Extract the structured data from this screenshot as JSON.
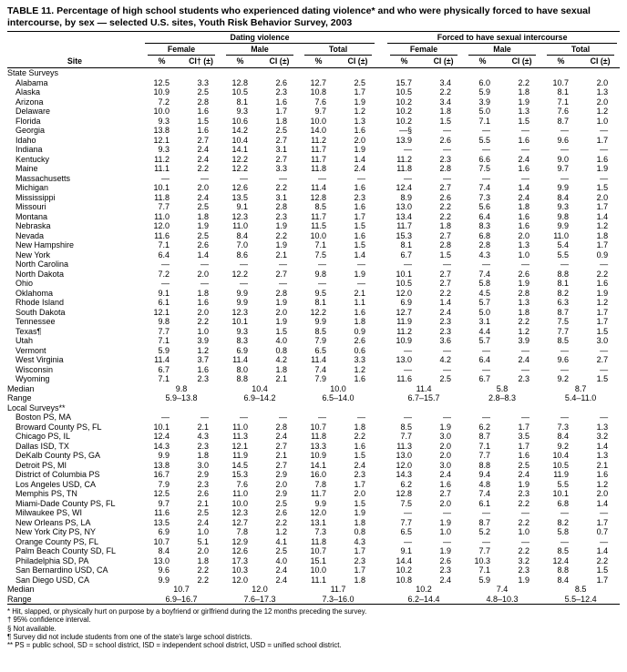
{
  "title": "TABLE 11. Percentage of high school students who experienced dating violence* and who were physically forced to have sexual intercourse, by sex — selected U.S. sites, Youth Risk Behavior Survey, 2003",
  "header": {
    "site": "Site",
    "groups": [
      "Dating violence",
      "Forced to have sexual intercourse"
    ],
    "subgroups": [
      "Female",
      "Male",
      "Total"
    ],
    "pct": "%",
    "ci_first": "CI† (±)",
    "ci": "CI (±)"
  },
  "sections": [
    {
      "label": "State Surveys",
      "rows": [
        [
          "Alabama",
          "12.5",
          "3.3",
          "12.8",
          "2.6",
          "12.7",
          "2.5",
          "15.7",
          "3.4",
          "6.0",
          "2.2",
          "10.7",
          "2.0"
        ],
        [
          "Alaska",
          "10.9",
          "2.5",
          "10.5",
          "2.3",
          "10.8",
          "1.7",
          "10.5",
          "2.2",
          "5.9",
          "1.8",
          "8.1",
          "1.3"
        ],
        [
          "Arizona",
          "7.2",
          "2.8",
          "8.1",
          "1.6",
          "7.6",
          "1.9",
          "10.2",
          "3.4",
          "3.9",
          "1.9",
          "7.1",
          "2.0"
        ],
        [
          "Delaware",
          "10.0",
          "1.6",
          "9.3",
          "1.7",
          "9.7",
          "1.2",
          "10.2",
          "1.8",
          "5.0",
          "1.3",
          "7.6",
          "1.2"
        ],
        [
          "Florida",
          "9.3",
          "1.5",
          "10.6",
          "1.8",
          "10.0",
          "1.3",
          "10.2",
          "1.5",
          "7.1",
          "1.5",
          "8.7",
          "1.0"
        ],
        [
          "Georgia",
          "13.8",
          "1.6",
          "14.2",
          "2.5",
          "14.0",
          "1.6",
          "—§",
          "—",
          "—",
          "—",
          "—",
          "—"
        ],
        [
          "Idaho",
          "12.1",
          "2.7",
          "10.4",
          "2.7",
          "11.2",
          "2.0",
          "13.9",
          "2.6",
          "5.5",
          "1.6",
          "9.6",
          "1.7"
        ],
        [
          "Indiana",
          "9.3",
          "2.4",
          "14.1",
          "3.1",
          "11.7",
          "1.9",
          "—",
          "—",
          "—",
          "—",
          "—",
          "—"
        ],
        [
          "Kentucky",
          "11.2",
          "2.4",
          "12.2",
          "2.7",
          "11.7",
          "1.4",
          "11.2",
          "2.3",
          "6.6",
          "2.4",
          "9.0",
          "1.6"
        ],
        [
          "Maine",
          "11.1",
          "2.2",
          "12.2",
          "3.3",
          "11.8",
          "2.4",
          "11.8",
          "2.8",
          "7.5",
          "1.6",
          "9.7",
          "1.9"
        ],
        [
          "Massachusetts",
          "—",
          "—",
          "—",
          "—",
          "—",
          "—",
          "—",
          "—",
          "—",
          "—",
          "—",
          "—"
        ],
        [
          "Michigan",
          "10.1",
          "2.0",
          "12.6",
          "2.2",
          "11.4",
          "1.6",
          "12.4",
          "2.7",
          "7.4",
          "1.4",
          "9.9",
          "1.5"
        ],
        [
          "Mississippi",
          "11.8",
          "2.4",
          "13.5",
          "3.1",
          "12.8",
          "2.3",
          "8.9",
          "2.6",
          "7.3",
          "2.4",
          "8.4",
          "2.0"
        ],
        [
          "Missouri",
          "7.7",
          "2.5",
          "9.1",
          "2.8",
          "8.5",
          "1.6",
          "13.0",
          "2.2",
          "5.6",
          "1.8",
          "9.3",
          "1.7"
        ],
        [
          "Montana",
          "11.0",
          "1.8",
          "12.3",
          "2.3",
          "11.7",
          "1.7",
          "13.4",
          "2.2",
          "6.4",
          "1.6",
          "9.8",
          "1.4"
        ],
        [
          "Nebraska",
          "12.0",
          "1.9",
          "11.0",
          "1.9",
          "11.5",
          "1.5",
          "11.7",
          "1.8",
          "8.3",
          "1.6",
          "9.9",
          "1.2"
        ],
        [
          "Nevada",
          "11.6",
          "2.5",
          "8.4",
          "2.2",
          "10.0",
          "1.6",
          "15.3",
          "2.7",
          "6.8",
          "2.0",
          "11.0",
          "1.8"
        ],
        [
          "New Hampshire",
          "7.1",
          "2.6",
          "7.0",
          "1.9",
          "7.1",
          "1.5",
          "8.1",
          "2.8",
          "2.8",
          "1.3",
          "5.4",
          "1.7"
        ],
        [
          "New York",
          "6.4",
          "1.4",
          "8.6",
          "2.1",
          "7.5",
          "1.4",
          "6.7",
          "1.5",
          "4.3",
          "1.0",
          "5.5",
          "0.9"
        ],
        [
          "North Carolina",
          "—",
          "—",
          "—",
          "—",
          "—",
          "—",
          "—",
          "—",
          "—",
          "—",
          "—",
          "—"
        ],
        [
          "North Dakota",
          "7.2",
          "2.0",
          "12.2",
          "2.7",
          "9.8",
          "1.9",
          "10.1",
          "2.7",
          "7.4",
          "2.6",
          "8.8",
          "2.2"
        ],
        [
          "Ohio",
          "—",
          "—",
          "—",
          "—",
          "—",
          "—",
          "10.5",
          "2.7",
          "5.8",
          "1.9",
          "8.1",
          "1.6"
        ],
        [
          "Oklahoma",
          "9.1",
          "1.8",
          "9.9",
          "2.8",
          "9.5",
          "2.1",
          "12.0",
          "2.2",
          "4.5",
          "2.8",
          "8.2",
          "1.9"
        ],
        [
          "Rhode Island",
          "6.1",
          "1.6",
          "9.9",
          "1.9",
          "8.1",
          "1.1",
          "6.9",
          "1.4",
          "5.7",
          "1.3",
          "6.3",
          "1.2"
        ],
        [
          "South Dakota",
          "12.1",
          "2.0",
          "12.3",
          "2.0",
          "12.2",
          "1.6",
          "12.7",
          "2.4",
          "5.0",
          "1.8",
          "8.7",
          "1.7"
        ],
        [
          "Tennessee",
          "9.8",
          "2.2",
          "10.1",
          "1.9",
          "9.9",
          "1.8",
          "11.9",
          "2.3",
          "3.1",
          "2.2",
          "7.5",
          "1.7"
        ],
        [
          "Texas¶",
          "7.7",
          "1.0",
          "9.3",
          "1.5",
          "8.5",
          "0.9",
          "11.2",
          "2.3",
          "4.4",
          "1.2",
          "7.7",
          "1.5"
        ],
        [
          "Utah",
          "7.1",
          "3.9",
          "8.3",
          "4.0",
          "7.9",
          "2.6",
          "10.9",
          "3.6",
          "5.7",
          "3.9",
          "8.5",
          "3.0"
        ],
        [
          "Vermont",
          "5.9",
          "1.2",
          "6.9",
          "0.8",
          "6.5",
          "0.6",
          "—",
          "—",
          "—",
          "—",
          "—",
          "—"
        ],
        [
          "West Virginia",
          "11.4",
          "3.7",
          "11.4",
          "4.2",
          "11.4",
          "3.3",
          "13.0",
          "4.2",
          "6.4",
          "2.4",
          "9.6",
          "2.7"
        ],
        [
          "Wisconsin",
          "6.7",
          "1.6",
          "8.0",
          "1.8",
          "7.4",
          "1.2",
          "—",
          "—",
          "—",
          "—",
          "—",
          "—"
        ],
        [
          "Wyoming",
          "7.1",
          "2.3",
          "8.8",
          "2.1",
          "7.9",
          "1.6",
          "11.6",
          "2.5",
          "6.7",
          "2.3",
          "9.2",
          "1.5"
        ]
      ],
      "median_label": "Median",
      "median": [
        "9.8",
        "10.4",
        "10.0",
        "11.4",
        "5.8",
        "8.7"
      ],
      "range_label": "Range",
      "range": [
        "5.9–13.8",
        "6.9–14.2",
        "6.5–14.0",
        "6.7–15.7",
        "2.8–8.3",
        "5.4–11.0"
      ]
    },
    {
      "label": "Local Surveys**",
      "rows": [
        [
          "Boston PS, MA",
          "—",
          "—",
          "—",
          "—",
          "—",
          "—",
          "—",
          "—",
          "—",
          "—",
          "—",
          "—"
        ],
        [
          "Broward County PS, FL",
          "10.1",
          "2.1",
          "11.0",
          "2.8",
          "10.7",
          "1.8",
          "8.5",
          "1.9",
          "6.2",
          "1.7",
          "7.3",
          "1.3"
        ],
        [
          "Chicago PS, IL",
          "12.4",
          "4.3",
          "11.3",
          "2.4",
          "11.8",
          "2.2",
          "7.7",
          "3.0",
          "8.7",
          "3.5",
          "8.4",
          "3.2"
        ],
        [
          "Dallas ISD, TX",
          "14.3",
          "2.3",
          "12.1",
          "2.7",
          "13.3",
          "1.6",
          "11.3",
          "2.0",
          "7.1",
          "1.7",
          "9.2",
          "1.4"
        ],
        [
          "DeKalb County PS, GA",
          "9.9",
          "1.8",
          "11.9",
          "2.1",
          "10.9",
          "1.5",
          "13.0",
          "2.0",
          "7.7",
          "1.6",
          "10.4",
          "1.3"
        ],
        [
          "Detroit PS, MI",
          "13.8",
          "3.0",
          "14.5",
          "2.7",
          "14.1",
          "2.4",
          "12.0",
          "3.0",
          "8.8",
          "2.5",
          "10.5",
          "2.1"
        ],
        [
          "District of Columbia PS",
          "16.7",
          "2.9",
          "15.3",
          "2.9",
          "16.0",
          "2.3",
          "14.3",
          "2.4",
          "9.4",
          "2.4",
          "11.9",
          "1.6"
        ],
        [
          "Los Angeles USD, CA",
          "7.9",
          "2.3",
          "7.6",
          "2.0",
          "7.8",
          "1.7",
          "6.2",
          "1.6",
          "4.8",
          "1.9",
          "5.5",
          "1.2"
        ],
        [
          "Memphis PS, TN",
          "12.5",
          "2.6",
          "11.0",
          "2.9",
          "11.7",
          "2.0",
          "12.8",
          "2.7",
          "7.4",
          "2.3",
          "10.1",
          "2.0"
        ],
        [
          "Miami-Dade County PS, FL",
          "9.7",
          "2.1",
          "10.0",
          "2.5",
          "9.9",
          "1.5",
          "7.5",
          "2.0",
          "6.1",
          "2.2",
          "6.8",
          "1.4"
        ],
        [
          "Milwaukee PS, WI",
          "11.6",
          "2.5",
          "12.3",
          "2.6",
          "12.0",
          "1.9",
          "—",
          "—",
          "—",
          "—",
          "—",
          "—"
        ],
        [
          "New Orleans PS, LA",
          "13.5",
          "2.4",
          "12.7",
          "2.2",
          "13.1",
          "1.8",
          "7.7",
          "1.9",
          "8.7",
          "2.2",
          "8.2",
          "1.7"
        ],
        [
          "New York City PS, NY",
          "6.9",
          "1.0",
          "7.8",
          "1.2",
          "7.3",
          "0.8",
          "6.5",
          "1.0",
          "5.2",
          "1.0",
          "5.8",
          "0.7"
        ],
        [
          "Orange County PS, FL",
          "10.7",
          "5.1",
          "12.9",
          "4.1",
          "11.8",
          "4.3",
          "—",
          "—",
          "—",
          "—",
          "—",
          "—"
        ],
        [
          "Palm Beach County SD, FL",
          "8.4",
          "2.0",
          "12.6",
          "2.5",
          "10.7",
          "1.7",
          "9.1",
          "1.9",
          "7.7",
          "2.2",
          "8.5",
          "1.4"
        ],
        [
          "Philadelphia SD, PA",
          "13.0",
          "1.8",
          "17.3",
          "4.0",
          "15.1",
          "2.3",
          "14.4",
          "2.6",
          "10.3",
          "3.2",
          "12.4",
          "2.2"
        ],
        [
          "San Bernardino USD, CA",
          "9.6",
          "2.2",
          "10.3",
          "2.4",
          "10.0",
          "1.7",
          "10.2",
          "2.3",
          "7.1",
          "2.3",
          "8.8",
          "1.5"
        ],
        [
          "San Diego USD, CA",
          "9.9",
          "2.2",
          "12.0",
          "2.4",
          "11.1",
          "1.8",
          "10.8",
          "2.4",
          "5.9",
          "1.9",
          "8.4",
          "1.7"
        ]
      ],
      "median_label": "Median",
      "median": [
        "10.7",
        "12.0",
        "11.7",
        "10.2",
        "7.4",
        "8.5"
      ],
      "range_label": "Range",
      "range": [
        "6.9–16.7",
        "7.6–17.3",
        "7.3–16.0",
        "6.2–14.4",
        "4.8–10.3",
        "5.5–12.4"
      ]
    }
  ],
  "footnotes": [
    "* Hit, slapped, or physically hurt on purpose by a boyfriend or girlfriend during the 12 months preceding the survey.",
    "† 95% confidence interval.",
    "§ Not available.",
    "¶ Survey did not include students from one of the state's large school districts.",
    "** PS = public school, SD = school district, ISD = independent school district, USD = unified school district."
  ]
}
